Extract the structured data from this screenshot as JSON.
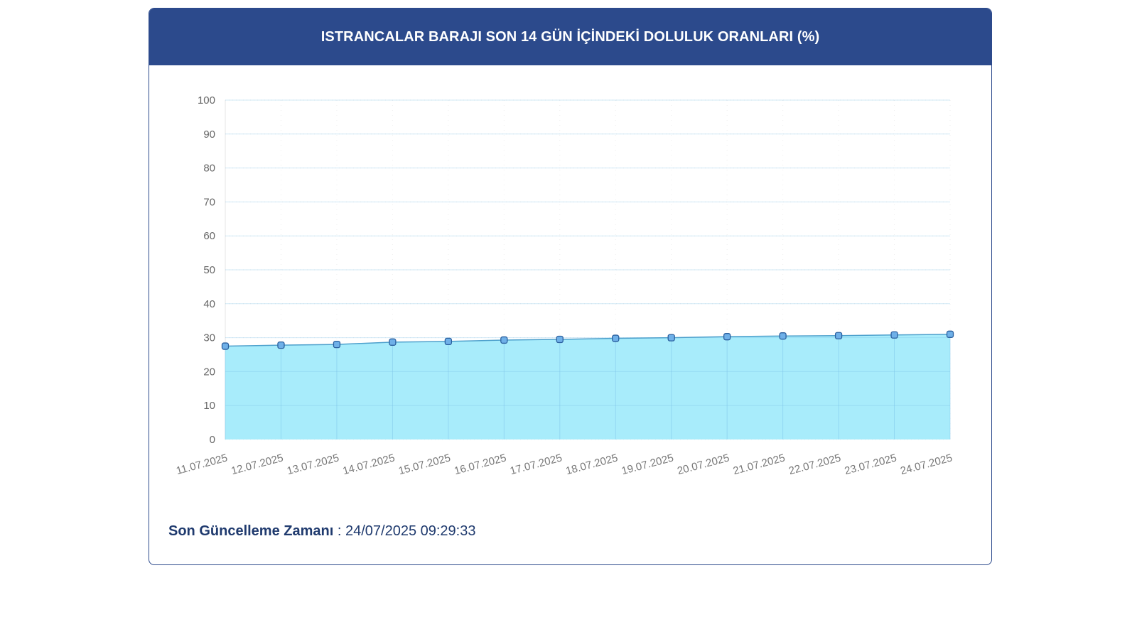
{
  "header": {
    "title": "ISTRANCALAR BARAJI SON 14 GÜN İÇİNDEKİ DOLULUK ORANLARI (%)"
  },
  "chart_data": {
    "type": "area",
    "categories": [
      "11.07.2025",
      "12.07.2025",
      "13.07.2025",
      "14.07.2025",
      "15.07.2025",
      "16.07.2025",
      "17.07.2025",
      "18.07.2025",
      "19.07.2025",
      "20.07.2025",
      "21.07.2025",
      "22.07.2025",
      "23.07.2025",
      "24.07.2025"
    ],
    "values": [
      27.5,
      27.8,
      28.0,
      28.7,
      28.9,
      29.3,
      29.5,
      29.8,
      30.0,
      30.3,
      30.5,
      30.6,
      30.8,
      31.0
    ],
    "ylim": [
      0,
      100
    ],
    "yticks": [
      "0",
      "10",
      "20",
      "30",
      "40",
      "50",
      "60",
      "70",
      "80",
      "90",
      "100"
    ],
    "grid": true,
    "colors": {
      "fill": "#a8ecfb",
      "line": "#4da0cc",
      "marker_fill": "#6fb0e8",
      "marker_stroke": "#2a5f9e"
    }
  },
  "footer": {
    "label": "Son Güncelleme Zamanı",
    "separator": " : ",
    "value": "24/07/2025 09:29:33"
  }
}
